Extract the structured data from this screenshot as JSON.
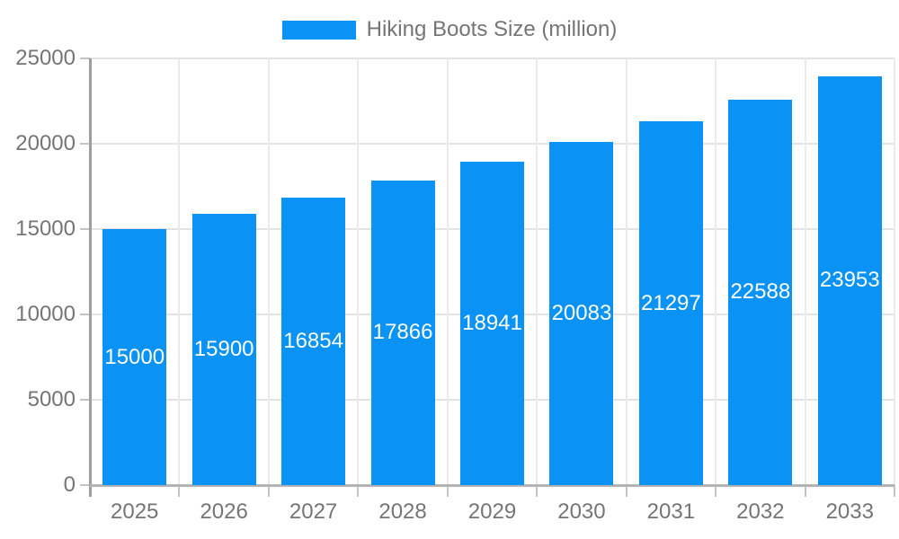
{
  "legend": {
    "label": "Hiking Boots Size (million)"
  },
  "colors": {
    "bar": "#0A93F5",
    "axis_text": "#757575",
    "data_label_text": "#FFFFFF",
    "grid_h": "#E3E3E3",
    "grid_v": "#EBEBEB",
    "axis_line": "#9E9E9E",
    "baseline": "#B3B3B3",
    "tick": "#C4C4C4",
    "background": "#FFFFFF"
  },
  "chart_data": {
    "type": "bar",
    "title": "Hiking Boots Size (million)",
    "categories": [
      "2025",
      "2026",
      "2027",
      "2028",
      "2029",
      "2030",
      "2031",
      "2032",
      "2033"
    ],
    "values": [
      15000,
      15900,
      16854,
      17866,
      18941,
      20083,
      21297,
      22588,
      23953
    ],
    "xlabel": "",
    "ylabel": "",
    "ylim": [
      0,
      25000
    ],
    "yticks": [
      0,
      5000,
      10000,
      15000,
      20000,
      25000
    ],
    "grid": true,
    "legend_position": "top",
    "data_labels_position": "inside-center"
  }
}
